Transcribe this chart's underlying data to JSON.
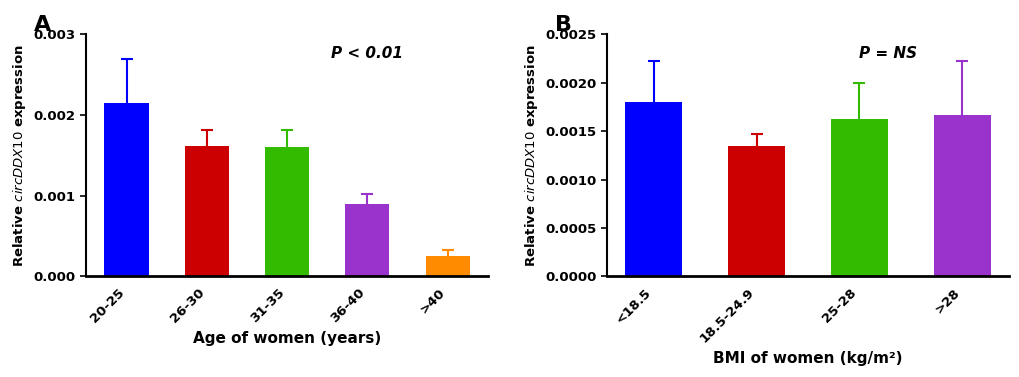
{
  "panel_A": {
    "categories": [
      "20-25",
      "26-30",
      "31-35",
      "36-40",
      ">40"
    ],
    "values": [
      0.00215,
      0.00162,
      0.0016,
      0.0009,
      0.00025
    ],
    "errors": [
      0.00055,
      0.0002,
      0.00022,
      0.00012,
      7e-05
    ],
    "colors": [
      "#0000FF",
      "#CC0000",
      "#33BB00",
      "#9933CC",
      "#FF8C00"
    ],
    "xlabel": "Age of women (years)",
    "panel_label": "A",
    "annotation": "P < 0.01",
    "ylim": [
      0,
      0.003
    ],
    "yticks": [
      0.0,
      0.001,
      0.002,
      0.003
    ],
    "ytick_labels": [
      "0.000",
      "0.001",
      "0.002",
      "0.003"
    ]
  },
  "panel_B": {
    "categories": [
      "<18.5",
      "18.5-24.9",
      "25-28",
      ">28"
    ],
    "values": [
      0.0018,
      0.00135,
      0.00163,
      0.00167
    ],
    "errors": [
      0.00042,
      0.00012,
      0.00037,
      0.00055
    ],
    "colors": [
      "#0000FF",
      "#CC0000",
      "#33BB00",
      "#9933CC"
    ],
    "xlabel": "BMI of women (kg/m²)",
    "panel_label": "B",
    "annotation": "P = NS",
    "ylim": [
      0,
      0.0025
    ],
    "yticks": [
      0.0,
      0.0005,
      0.001,
      0.0015,
      0.002,
      0.0025
    ],
    "ytick_labels": [
      "0.0000",
      "0.0005",
      "0.0010",
      "0.0015",
      "0.0020",
      "0.0025"
    ]
  },
  "ylabel": "Relative circDDX10 expression",
  "background_color": "#FFFFFF",
  "bar_width": 0.55,
  "capsize": 4
}
